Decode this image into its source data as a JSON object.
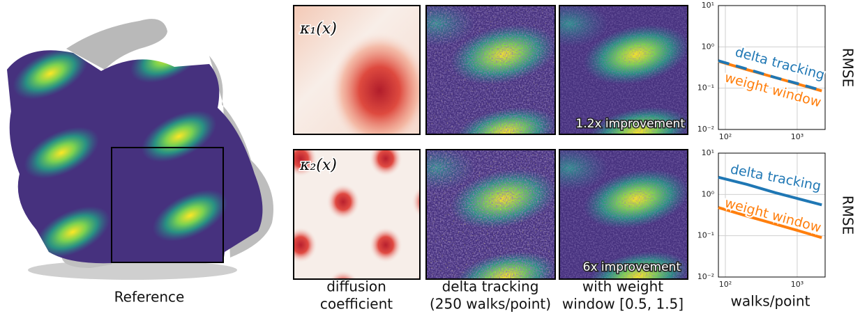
{
  "reference": {
    "caption": "Reference"
  },
  "rows": [
    {
      "coefficient": "κ₁(x)",
      "improvement": "1.2x improvement"
    },
    {
      "coefficient": "κ₂(x)",
      "improvement": "6x improvement"
    }
  ],
  "columns": [
    [
      "diffusion",
      "coefficient"
    ],
    [
      "delta tracking",
      "(250 walks/point)"
    ],
    [
      "with weight",
      "window [0.5, 1.5]"
    ]
  ],
  "chart_data": [
    {
      "type": "line",
      "y_label": "RMSE",
      "log_x": true,
      "log_y": true,
      "grid": true,
      "x": [
        80,
        200,
        500,
        1000,
        2200
      ],
      "xlim": [
        80,
        2450
      ],
      "xticks": [
        {
          "value": 100,
          "label": "10²"
        },
        {
          "value": 1000,
          "label": "10³"
        }
      ],
      "ylim": [
        0.01,
        10
      ],
      "yticks": [
        {
          "value": 0.01,
          "label": "10⁻²"
        },
        {
          "value": 0.1,
          "label": "10⁻¹"
        },
        {
          "value": 1,
          "label": "10⁰"
        },
        {
          "value": 10,
          "label": "10¹"
        }
      ],
      "series": [
        {
          "name": "delta tracking",
          "color": "#1f77b4",
          "linestyle": "dashed",
          "values": [
            0.46,
            0.29,
            0.18,
            0.13,
            0.088
          ]
        },
        {
          "name": "weight window",
          "color": "#ff7f0e",
          "values": [
            0.45,
            0.28,
            0.18,
            0.127,
            0.086
          ]
        }
      ]
    },
    {
      "type": "line",
      "y_label": "RMSE",
      "x_label": "walks/point",
      "log_x": true,
      "log_y": true,
      "grid": true,
      "x": [
        80,
        200,
        500,
        1000,
        2200
      ],
      "xlim": [
        80,
        2450
      ],
      "xticks": [
        {
          "value": 100,
          "label": "10²"
        },
        {
          "value": 1000,
          "label": "10³"
        }
      ],
      "ylim": [
        0.01,
        10
      ],
      "yticks": [
        {
          "value": 0.01,
          "label": "10⁻²"
        },
        {
          "value": 0.1,
          "label": "10⁻¹"
        },
        {
          "value": 1,
          "label": "10⁰"
        },
        {
          "value": 10,
          "label": "10¹"
        }
      ],
      "series": [
        {
          "name": "delta tracking",
          "color": "#1f77b4",
          "linestyle": "solid",
          "values": [
            2.6,
            1.75,
            1.1,
            0.8,
            0.56
          ]
        },
        {
          "name": "weight window",
          "color": "#ff7f0e",
          "linestyle": "solid",
          "values": [
            0.48,
            0.3,
            0.19,
            0.135,
            0.09
          ]
        }
      ]
    }
  ]
}
